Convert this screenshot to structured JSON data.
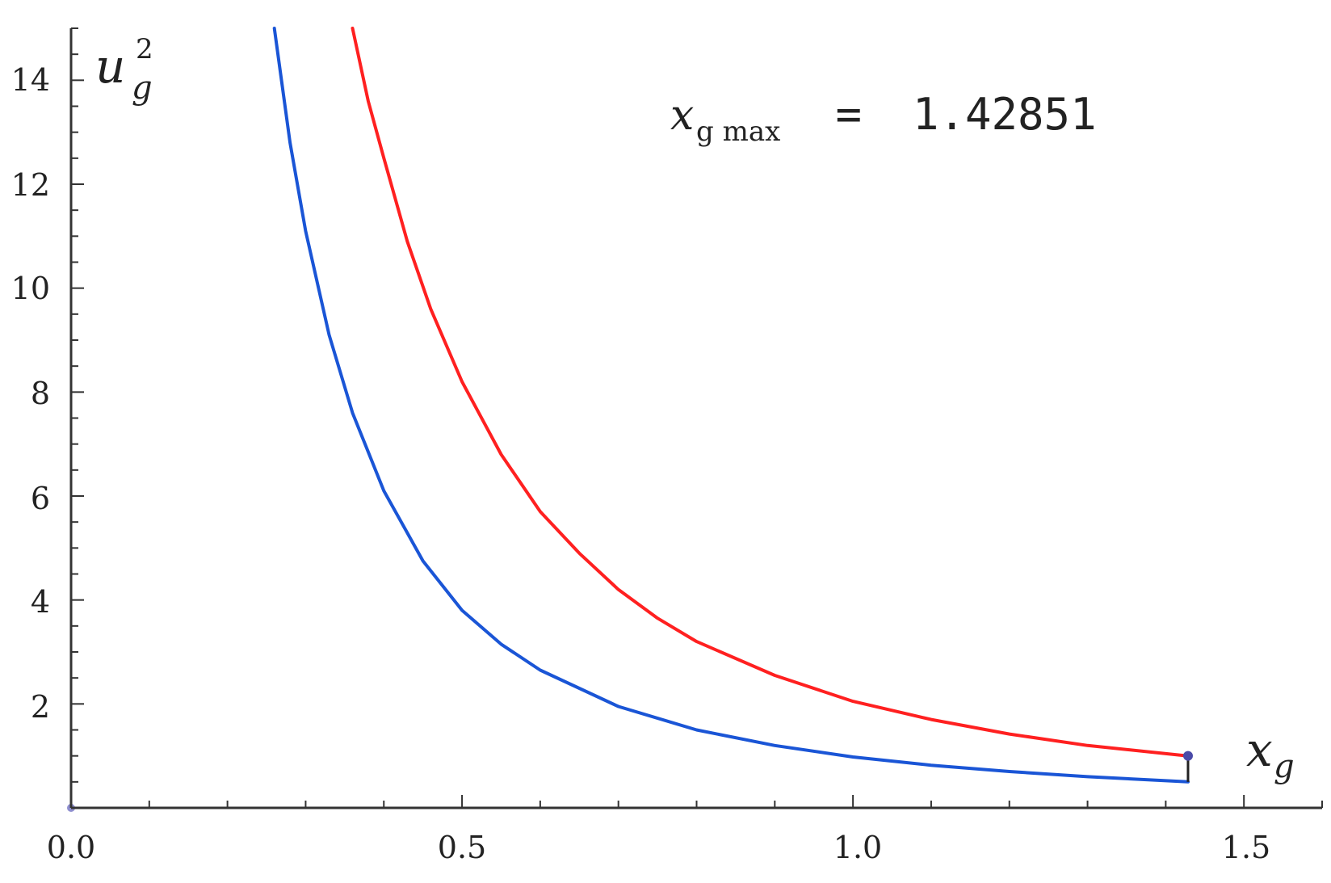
{
  "chart_data": {
    "type": "line",
    "xlabel": {
      "base": "x",
      "sub": "g"
    },
    "ylabel": {
      "base": "u",
      "sub": "g",
      "sup": "2"
    },
    "xlim": [
      0,
      1.6
    ],
    "ylim": [
      0,
      15
    ],
    "x_ticks": [
      0.0,
      0.5,
      1.0,
      1.5
    ],
    "x_tick_labels": [
      "0.0",
      "0.5",
      "1.0",
      "1.5"
    ],
    "y_ticks": [
      2,
      4,
      6,
      8,
      10,
      12,
      14
    ],
    "y_tick_labels": [
      "2",
      "4",
      "6",
      "8",
      "10",
      "12",
      "14"
    ],
    "annotation": {
      "var": "x",
      "sub": "g max",
      "eq": " = ",
      "value": "1.42851"
    },
    "series": [
      {
        "color": "#ff2020",
        "x": [
          0.36,
          0.38,
          0.4,
          0.43,
          0.46,
          0.5,
          0.55,
          0.6,
          0.65,
          0.7,
          0.75,
          0.8,
          0.9,
          1.0,
          1.1,
          1.2,
          1.3,
          1.42851
        ],
        "y": [
          15.0,
          13.6,
          12.5,
          10.9,
          9.6,
          8.2,
          6.8,
          5.7,
          4.9,
          4.2,
          3.65,
          3.2,
          2.55,
          2.05,
          1.7,
          1.42,
          1.2,
          1.0
        ]
      },
      {
        "color": "#1a55d6",
        "x": [
          0.26,
          0.28,
          0.3,
          0.33,
          0.36,
          0.4,
          0.45,
          0.5,
          0.55,
          0.6,
          0.7,
          0.8,
          0.9,
          1.0,
          1.1,
          1.2,
          1.3,
          1.42851
        ],
        "y": [
          15.0,
          12.8,
          11.1,
          9.1,
          7.6,
          6.1,
          4.75,
          3.8,
          3.15,
          2.65,
          1.95,
          1.5,
          1.2,
          0.98,
          0.82,
          0.7,
          0.6,
          0.5
        ]
      }
    ],
    "vertical_segment": {
      "x": 1.42851,
      "y0": 0.5,
      "y1": 1.0,
      "color": "#222222"
    },
    "end_point": {
      "x": 1.42851,
      "y": 1.0,
      "color": "#4a4aa8"
    },
    "origin_point": {
      "x": 0,
      "y": 0,
      "color": "#8f8fcf"
    },
    "baseline": {
      "y": 0,
      "x0": 0,
      "x1": 1.42851,
      "color": "#b0b0e0"
    },
    "grid": false,
    "legend": "none"
  }
}
